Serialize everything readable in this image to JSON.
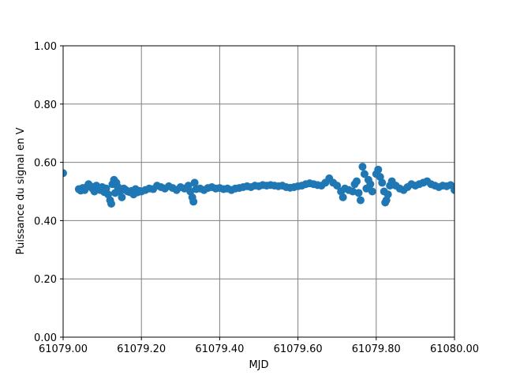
{
  "chart_data": {
    "type": "scatter",
    "xlabel": "MJD",
    "ylabel": "Puissance du signal en V",
    "xlim": [
      61079.0,
      61080.0
    ],
    "xticks": [
      {
        "value": 61079.0,
        "label": "61079.00"
      },
      {
        "value": 61079.2,
        "label": "61079.20"
      },
      {
        "value": 61079.4,
        "label": "61079.40"
      },
      {
        "value": 61079.6,
        "label": "61079.60"
      },
      {
        "value": 61079.8,
        "label": "61079.80"
      },
      {
        "value": 61080.0,
        "label": "61080.00"
      }
    ],
    "ylim": [
      0,
      1
    ],
    "yticks": [
      {
        "value": 0,
        "label": "0.00"
      },
      {
        "value": 0.2,
        "label": "0.20"
      },
      {
        "value": 0.4,
        "label": "0.40"
      },
      {
        "value": 0.6,
        "label": "0.60"
      },
      {
        "value": 0.8,
        "label": "0.80"
      },
      {
        "value": 1,
        "label": "1.00"
      }
    ],
    "grid": true,
    "color": "#1f77b4",
    "x": [
      61079.0,
      61079.04,
      61079.045,
      61079.05,
      61079.055,
      61079.06,
      61079.065,
      61079.07,
      61079.075,
      61079.08,
      61079.085,
      61079.09,
      61079.095,
      61079.1,
      61079.105,
      61079.11,
      61079.115,
      61079.12,
      61079.123,
      61079.126,
      61079.13,
      61079.133,
      61079.136,
      61079.14,
      61079.145,
      61079.15,
      61079.155,
      61079.16,
      61079.165,
      61079.17,
      61079.175,
      61079.18,
      61079.185,
      61079.19,
      61079.195,
      61079.2,
      61079.21,
      61079.22,
      61079.23,
      61079.24,
      61079.25,
      61079.26,
      61079.27,
      61079.28,
      61079.29,
      61079.3,
      61079.31,
      61079.32,
      61079.325,
      61079.33,
      61079.333,
      61079.336,
      61079.34,
      61079.35,
      61079.36,
      61079.37,
      61079.38,
      61079.39,
      61079.4,
      61079.41,
      61079.42,
      61079.43,
      61079.44,
      61079.45,
      61079.46,
      61079.47,
      61079.48,
      61079.49,
      61079.5,
      61079.51,
      61079.52,
      61079.53,
      61079.54,
      61079.55,
      61079.56,
      61079.57,
      61079.58,
      61079.59,
      61079.6,
      61079.61,
      61079.62,
      61079.63,
      61079.64,
      61079.65,
      61079.66,
      61079.67,
      61079.68,
      61079.69,
      61079.7,
      61079.71,
      61079.715,
      61079.72,
      61079.73,
      61079.74,
      61079.745,
      61079.75,
      61079.755,
      61079.76,
      61079.765,
      61079.77,
      61079.775,
      61079.78,
      61079.785,
      61079.79,
      61079.8,
      61079.805,
      61079.81,
      61079.815,
      61079.82,
      61079.823,
      61079.826,
      61079.83,
      61079.835,
      61079.84,
      61079.85,
      61079.86,
      61079.87,
      61079.88,
      61079.89,
      61079.9,
      61079.91,
      61079.92,
      61079.93,
      61079.94,
      61079.95,
      61079.96,
      61079.97,
      61079.98,
      61079.99,
      61080.0
    ],
    "values": [
      0.563,
      0.508,
      0.503,
      0.512,
      0.505,
      0.515,
      0.525,
      0.518,
      0.51,
      0.5,
      0.52,
      0.512,
      0.505,
      0.515,
      0.498,
      0.51,
      0.49,
      0.47,
      0.458,
      0.525,
      0.54,
      0.495,
      0.53,
      0.515,
      0.5,
      0.48,
      0.51,
      0.505,
      0.5,
      0.498,
      0.502,
      0.49,
      0.508,
      0.497,
      0.502,
      0.5,
      0.505,
      0.51,
      0.508,
      0.52,
      0.515,
      0.51,
      0.518,
      0.512,
      0.505,
      0.515,
      0.51,
      0.52,
      0.5,
      0.48,
      0.465,
      0.53,
      0.508,
      0.51,
      0.505,
      0.512,
      0.515,
      0.51,
      0.512,
      0.508,
      0.51,
      0.505,
      0.51,
      0.512,
      0.515,
      0.518,
      0.515,
      0.52,
      0.518,
      0.522,
      0.52,
      0.522,
      0.52,
      0.518,
      0.52,
      0.515,
      0.513,
      0.515,
      0.518,
      0.52,
      0.525,
      0.528,
      0.525,
      0.522,
      0.52,
      0.53,
      0.545,
      0.53,
      0.52,
      0.5,
      0.48,
      0.51,
      0.505,
      0.5,
      0.525,
      0.535,
      0.495,
      0.47,
      0.585,
      0.56,
      0.51,
      0.54,
      0.525,
      0.5,
      0.56,
      0.575,
      0.55,
      0.53,
      0.5,
      0.462,
      0.47,
      0.49,
      0.52,
      0.535,
      0.52,
      0.51,
      0.505,
      0.515,
      0.525,
      0.52,
      0.525,
      0.53,
      0.535,
      0.525,
      0.52,
      0.515,
      0.52,
      0.518,
      0.522,
      0.505
    ]
  }
}
